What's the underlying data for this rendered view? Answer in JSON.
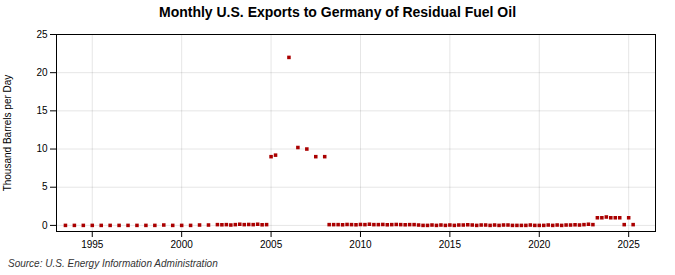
{
  "chart_data": {
    "type": "scatter",
    "title": "Monthly U.S. Exports to Germany of Residual Fuel Oil",
    "ylabel": "Thousand Barrels per Day",
    "source": "Source: U.S. Energy Information Administration",
    "x": [
      1993.5,
      1994.0,
      1994.5,
      1995.0,
      1995.5,
      1996.0,
      1996.5,
      1997.0,
      1997.5,
      1998.0,
      1998.5,
      1999.0,
      1999.5,
      2000.0,
      2000.5,
      2001.0,
      2001.5,
      2002.0,
      2002.25,
      2002.5,
      2002.75,
      2003.0,
      2003.25,
      2003.5,
      2003.75,
      2004.0,
      2004.25,
      2004.5,
      2004.75,
      2005.0,
      2005.25,
      2006.0,
      2006.5,
      2007.0,
      2007.5,
      2008.0,
      2008.25,
      2008.5,
      2008.75,
      2009.0,
      2009.25,
      2009.5,
      2009.75,
      2010.0,
      2010.25,
      2010.5,
      2010.75,
      2011.0,
      2011.25,
      2011.5,
      2011.75,
      2012.0,
      2012.25,
      2012.5,
      2012.75,
      2013.0,
      2013.25,
      2013.5,
      2013.75,
      2014.0,
      2014.25,
      2014.5,
      2014.75,
      2015.0,
      2015.25,
      2015.5,
      2015.75,
      2016.0,
      2016.25,
      2016.5,
      2016.75,
      2017.0,
      2017.25,
      2017.5,
      2017.75,
      2018.0,
      2018.25,
      2018.5,
      2018.75,
      2019.0,
      2019.25,
      2019.5,
      2019.75,
      2020.0,
      2020.25,
      2020.5,
      2020.75,
      2021.0,
      2021.25,
      2021.5,
      2021.75,
      2022.0,
      2022.25,
      2022.5,
      2022.75,
      2023.0,
      2023.25,
      2023.5,
      2023.75,
      2024.0,
      2024.25,
      2024.5,
      2024.75,
      2025.0,
      2025.25
    ],
    "values": [
      0,
      0,
      0,
      0,
      0,
      0,
      0,
      0,
      0,
      0,
      0,
      0.05,
      0,
      0,
      0,
      0.05,
      0.05,
      0.1,
      0.08,
      0.1,
      0.05,
      0.1,
      0.15,
      0.1,
      0.12,
      0.1,
      0.15,
      0.08,
      0.1,
      9.0,
      9.2,
      22.0,
      10.2,
      10.0,
      9.0,
      9.0,
      0.1,
      0.1,
      0.1,
      0.08,
      0.12,
      0.1,
      0.08,
      0.12,
      0.1,
      0.15,
      0.1,
      0.1,
      0.12,
      0.08,
      0.1,
      0.12,
      0.1,
      0.08,
      0.1,
      0.1,
      0.05,
      0,
      0,
      0.05,
      0,
      0.05,
      0,
      0.05,
      0,
      0.05,
      0.05,
      0.08,
      0.05,
      0,
      0.05,
      0.05,
      0,
      0.05,
      0,
      0.05,
      0.05,
      0,
      0,
      0,
      0,
      0.05,
      0,
      0,
      0,
      0.05,
      0,
      0.05,
      0,
      0.05,
      0.05,
      0.08,
      0.05,
      0.1,
      0.15,
      0.1,
      1.0,
      1.0,
      1.1,
      1.0,
      1.0,
      1.0,
      0.1,
      1.0,
      0.1
    ],
    "color": "#aa0000",
    "marker": "square",
    "xlim": [
      1993.0,
      2026.5
    ],
    "ylim": [
      -0.8,
      25
    ],
    "xticks": [
      1995,
      2000,
      2005,
      2010,
      2015,
      2020,
      2025
    ],
    "yticks": [
      0,
      5,
      10,
      15,
      20,
      25
    ],
    "grid": true
  }
}
